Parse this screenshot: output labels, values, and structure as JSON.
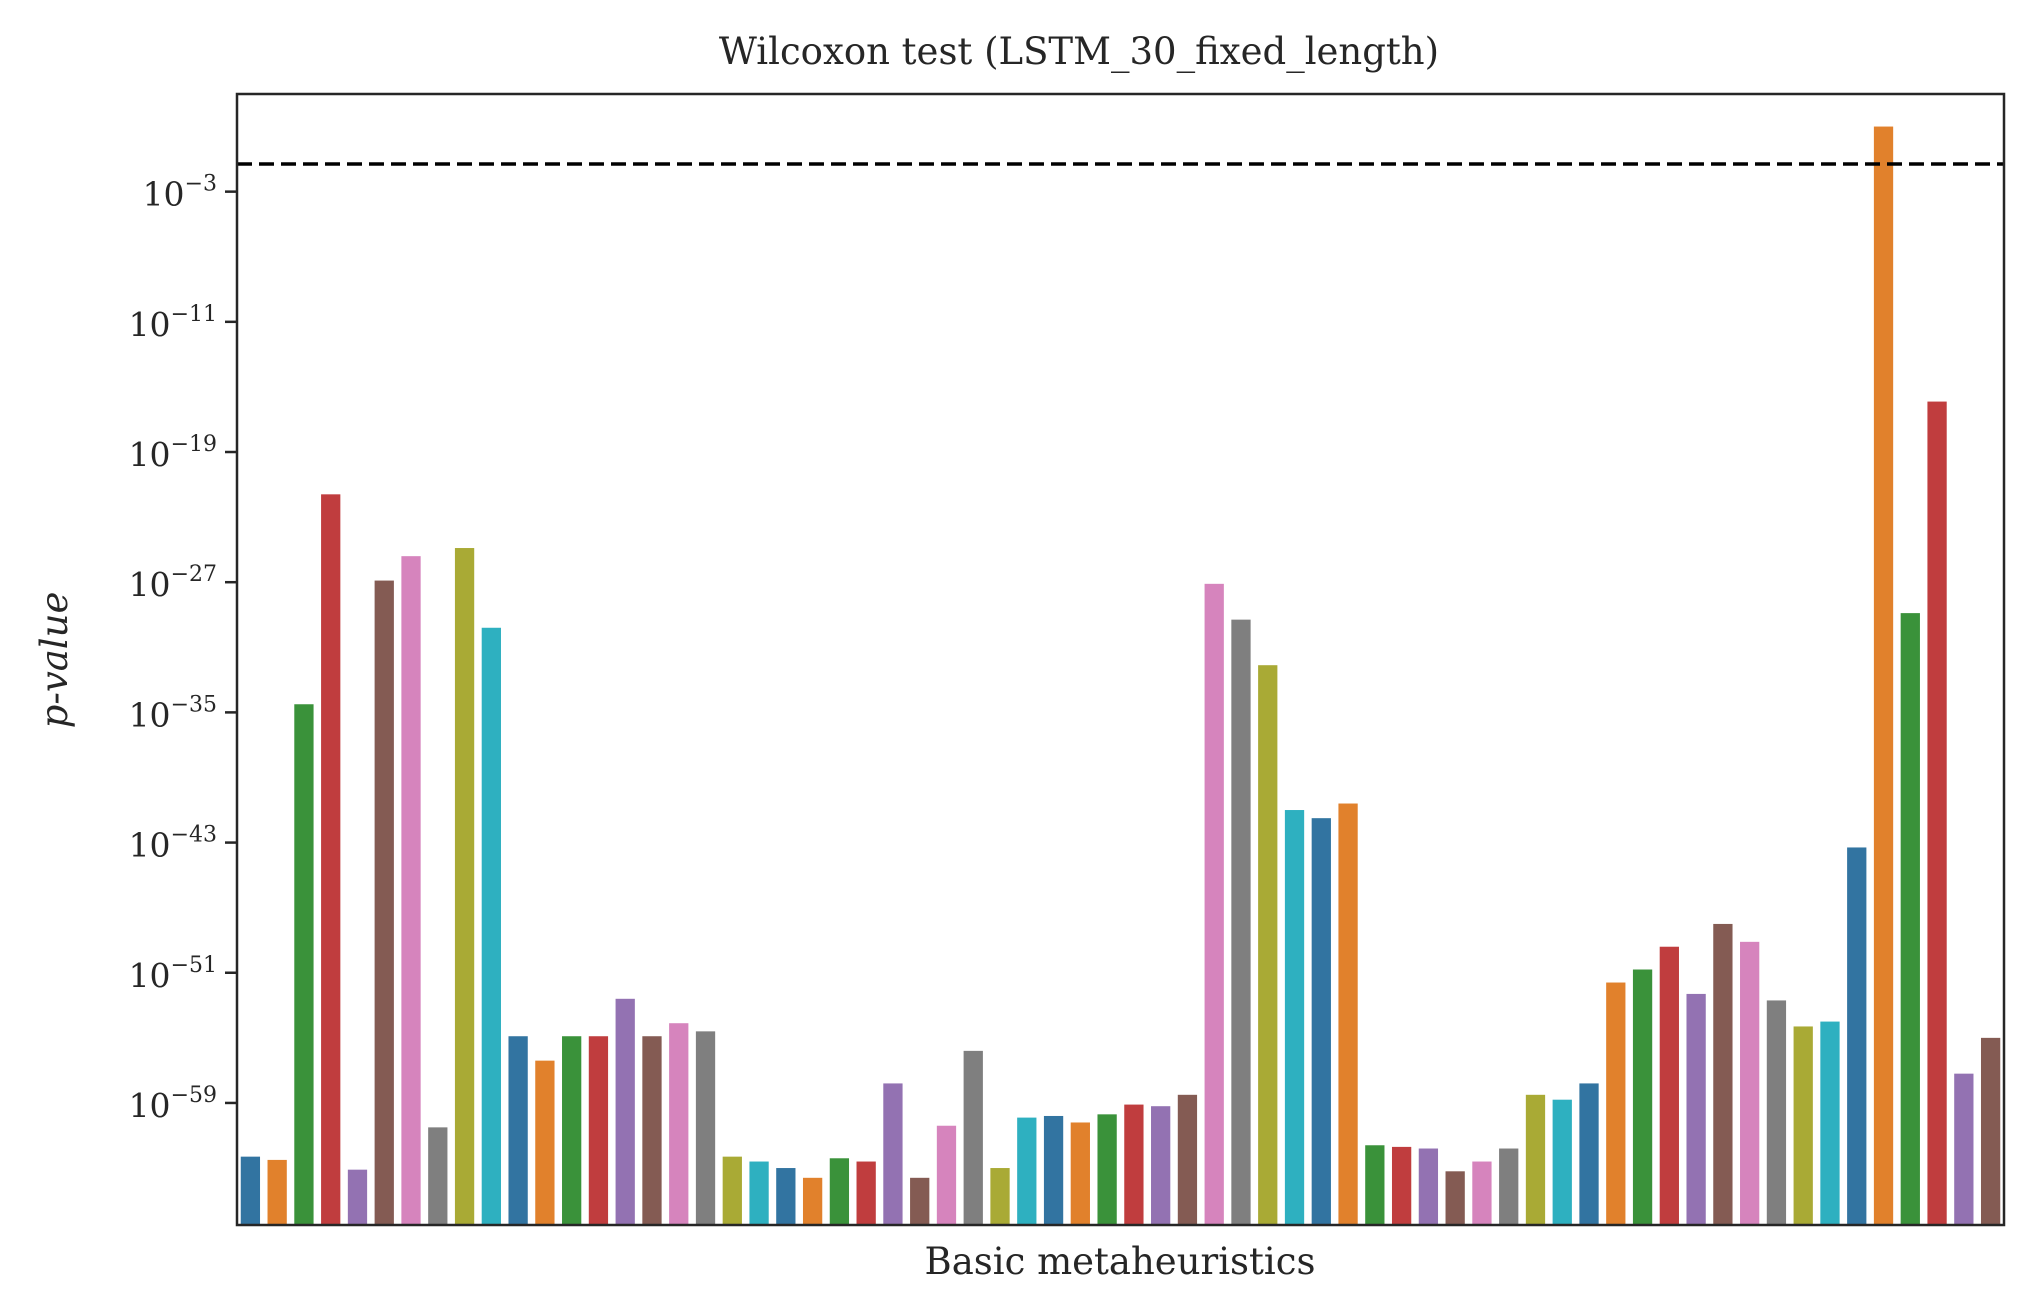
{
  "chart_data": {
    "type": "bar",
    "title": "Wilcoxon test (LSTM_30_fixed_length)",
    "xlabel": "Basic metaheuristics",
    "ylabel": "p-value",
    "yscale": "log",
    "ylim_log10": [
      -66.5,
      3.0
    ],
    "threshold_log10": -1.301,
    "threshold_style": "dashed",
    "grid": false,
    "yticks": [
      {
        "base": "10",
        "exp": "−3",
        "log10": -3
      },
      {
        "base": "10",
        "exp": "−11",
        "log10": -11
      },
      {
        "base": "10",
        "exp": "−19",
        "log10": -19
      },
      {
        "base": "10",
        "exp": "−27",
        "log10": -27
      },
      {
        "base": "10",
        "exp": "−35",
        "log10": -35
      },
      {
        "base": "10",
        "exp": "−43",
        "log10": -43
      },
      {
        "base": "10",
        "exp": "−51",
        "log10": -51
      },
      {
        "base": "10",
        "exp": "−59",
        "log10": -59
      }
    ],
    "palette": [
      "#3274a1",
      "#e1812c",
      "#3a923a",
      "#c03d3e",
      "#9372b2",
      "#845b53",
      "#d684bd",
      "#7f7f7f",
      "#a9aa35",
      "#2eb0c0"
    ],
    "values_log10": [
      -62.3,
      -62.5,
      -34.5,
      -21.6,
      -63.1,
      -26.9,
      -25.4,
      -60.5,
      -24.9,
      -29.8,
      -54.9,
      -56.4,
      -54.9,
      -54.9,
      -52.6,
      -54.9,
      -54.1,
      -54.6,
      -62.3,
      -62.6,
      -63.0,
      -63.6,
      -62.4,
      -62.6,
      -57.8,
      -63.6,
      -60.4,
      -55.8,
      -63.0,
      -59.9,
      -59.8,
      -60.2,
      -59.7,
      -59.1,
      -59.2,
      -58.5,
      -27.1,
      -29.3,
      -32.1,
      -41.0,
      -41.5,
      -40.6,
      -61.6,
      -61.7,
      -61.8,
      -63.2,
      -62.6,
      -61.8,
      -58.5,
      -58.8,
      -57.8,
      -51.6,
      -50.8,
      -49.4,
      -52.3,
      -48.0,
      -49.1,
      -52.7,
      -54.3,
      -54.0,
      -43.3,
      1.0,
      -28.9,
      -15.9,
      -57.2,
      -55.0
    ]
  }
}
